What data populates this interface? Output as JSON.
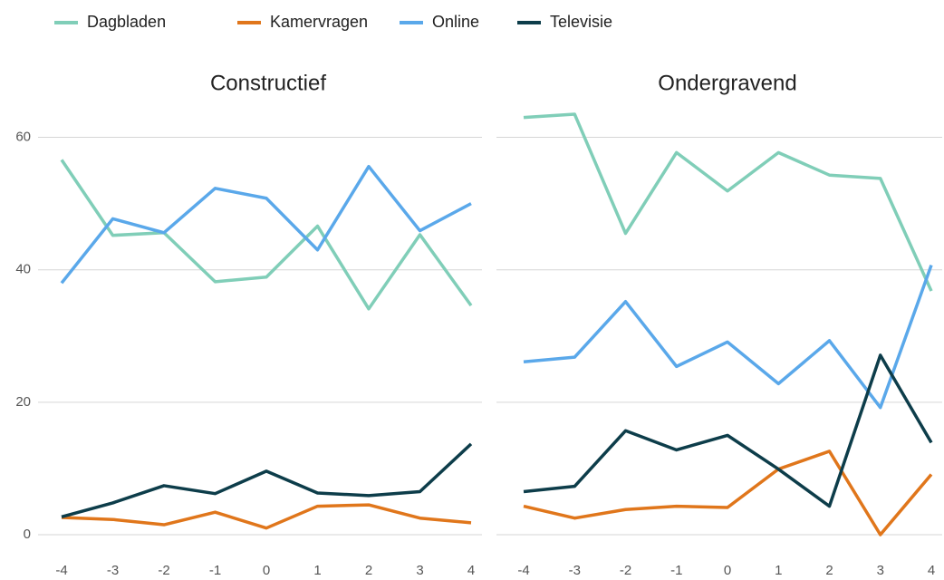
{
  "chart_data": [
    {
      "type": "line",
      "title": "Constructief",
      "x": [
        -4,
        -3,
        -2,
        -1,
        0,
        1,
        2,
        3,
        4
      ],
      "xlim": [
        -4,
        4
      ],
      "xticks": [
        -4,
        -3,
        -2,
        -1,
        0,
        1,
        2,
        3,
        4
      ],
      "ylim": [
        0,
        65
      ],
      "yticks": [
        0,
        20,
        40,
        60
      ],
      "grid": true,
      "legend": "top",
      "series": [
        {
          "name": "Dagbladen",
          "color": "#80ceb8",
          "values": [
            56.6,
            45.2,
            45.6,
            38.2,
            38.9,
            46.6,
            34.1,
            45.3,
            34.6
          ]
        },
        {
          "name": "Kamervragen",
          "color": "#e0761b",
          "values": [
            2.6,
            2.3,
            1.5,
            3.4,
            1.0,
            4.3,
            4.5,
            2.5,
            1.8
          ]
        },
        {
          "name": "Online",
          "color": "#5aa8ea",
          "values": [
            38.0,
            47.7,
            45.6,
            52.3,
            50.8,
            43.0,
            55.6,
            45.9,
            50.0
          ]
        },
        {
          "name": "Televisie",
          "color": "#0d3d4a",
          "values": [
            2.7,
            4.8,
            7.4,
            6.2,
            9.6,
            6.3,
            5.9,
            6.5,
            13.7
          ]
        }
      ]
    },
    {
      "type": "line",
      "title": "Ondergravend",
      "x": [
        -4,
        -3,
        -2,
        -1,
        0,
        1,
        2,
        3,
        4
      ],
      "xlim": [
        -4,
        4
      ],
      "xticks": [
        -4,
        -3,
        -2,
        -1,
        0,
        1,
        2,
        3,
        4
      ],
      "ylim": [
        0,
        65
      ],
      "grid": true,
      "series": [
        {
          "color": "#80ceb8",
          "values": [
            63.0,
            63.5,
            45.5,
            57.7,
            51.9,
            57.7,
            54.3,
            53.8,
            36.8
          ]
        },
        {
          "color": "#e0761b",
          "values": [
            4.3,
            2.5,
            3.8,
            4.3,
            4.1,
            9.9,
            12.6,
            0,
            9.1
          ]
        },
        {
          "color": "#5aa8ea",
          "values": [
            26.1,
            26.8,
            35.2,
            25.4,
            29.1,
            22.8,
            29.3,
            19.2,
            40.7
          ]
        },
        {
          "color": "#0d3d4a",
          "values": [
            6.5,
            7.3,
            15.7,
            12.8,
            15.0,
            9.9,
            4.3,
            27.1,
            13.9
          ]
        }
      ]
    }
  ]
}
